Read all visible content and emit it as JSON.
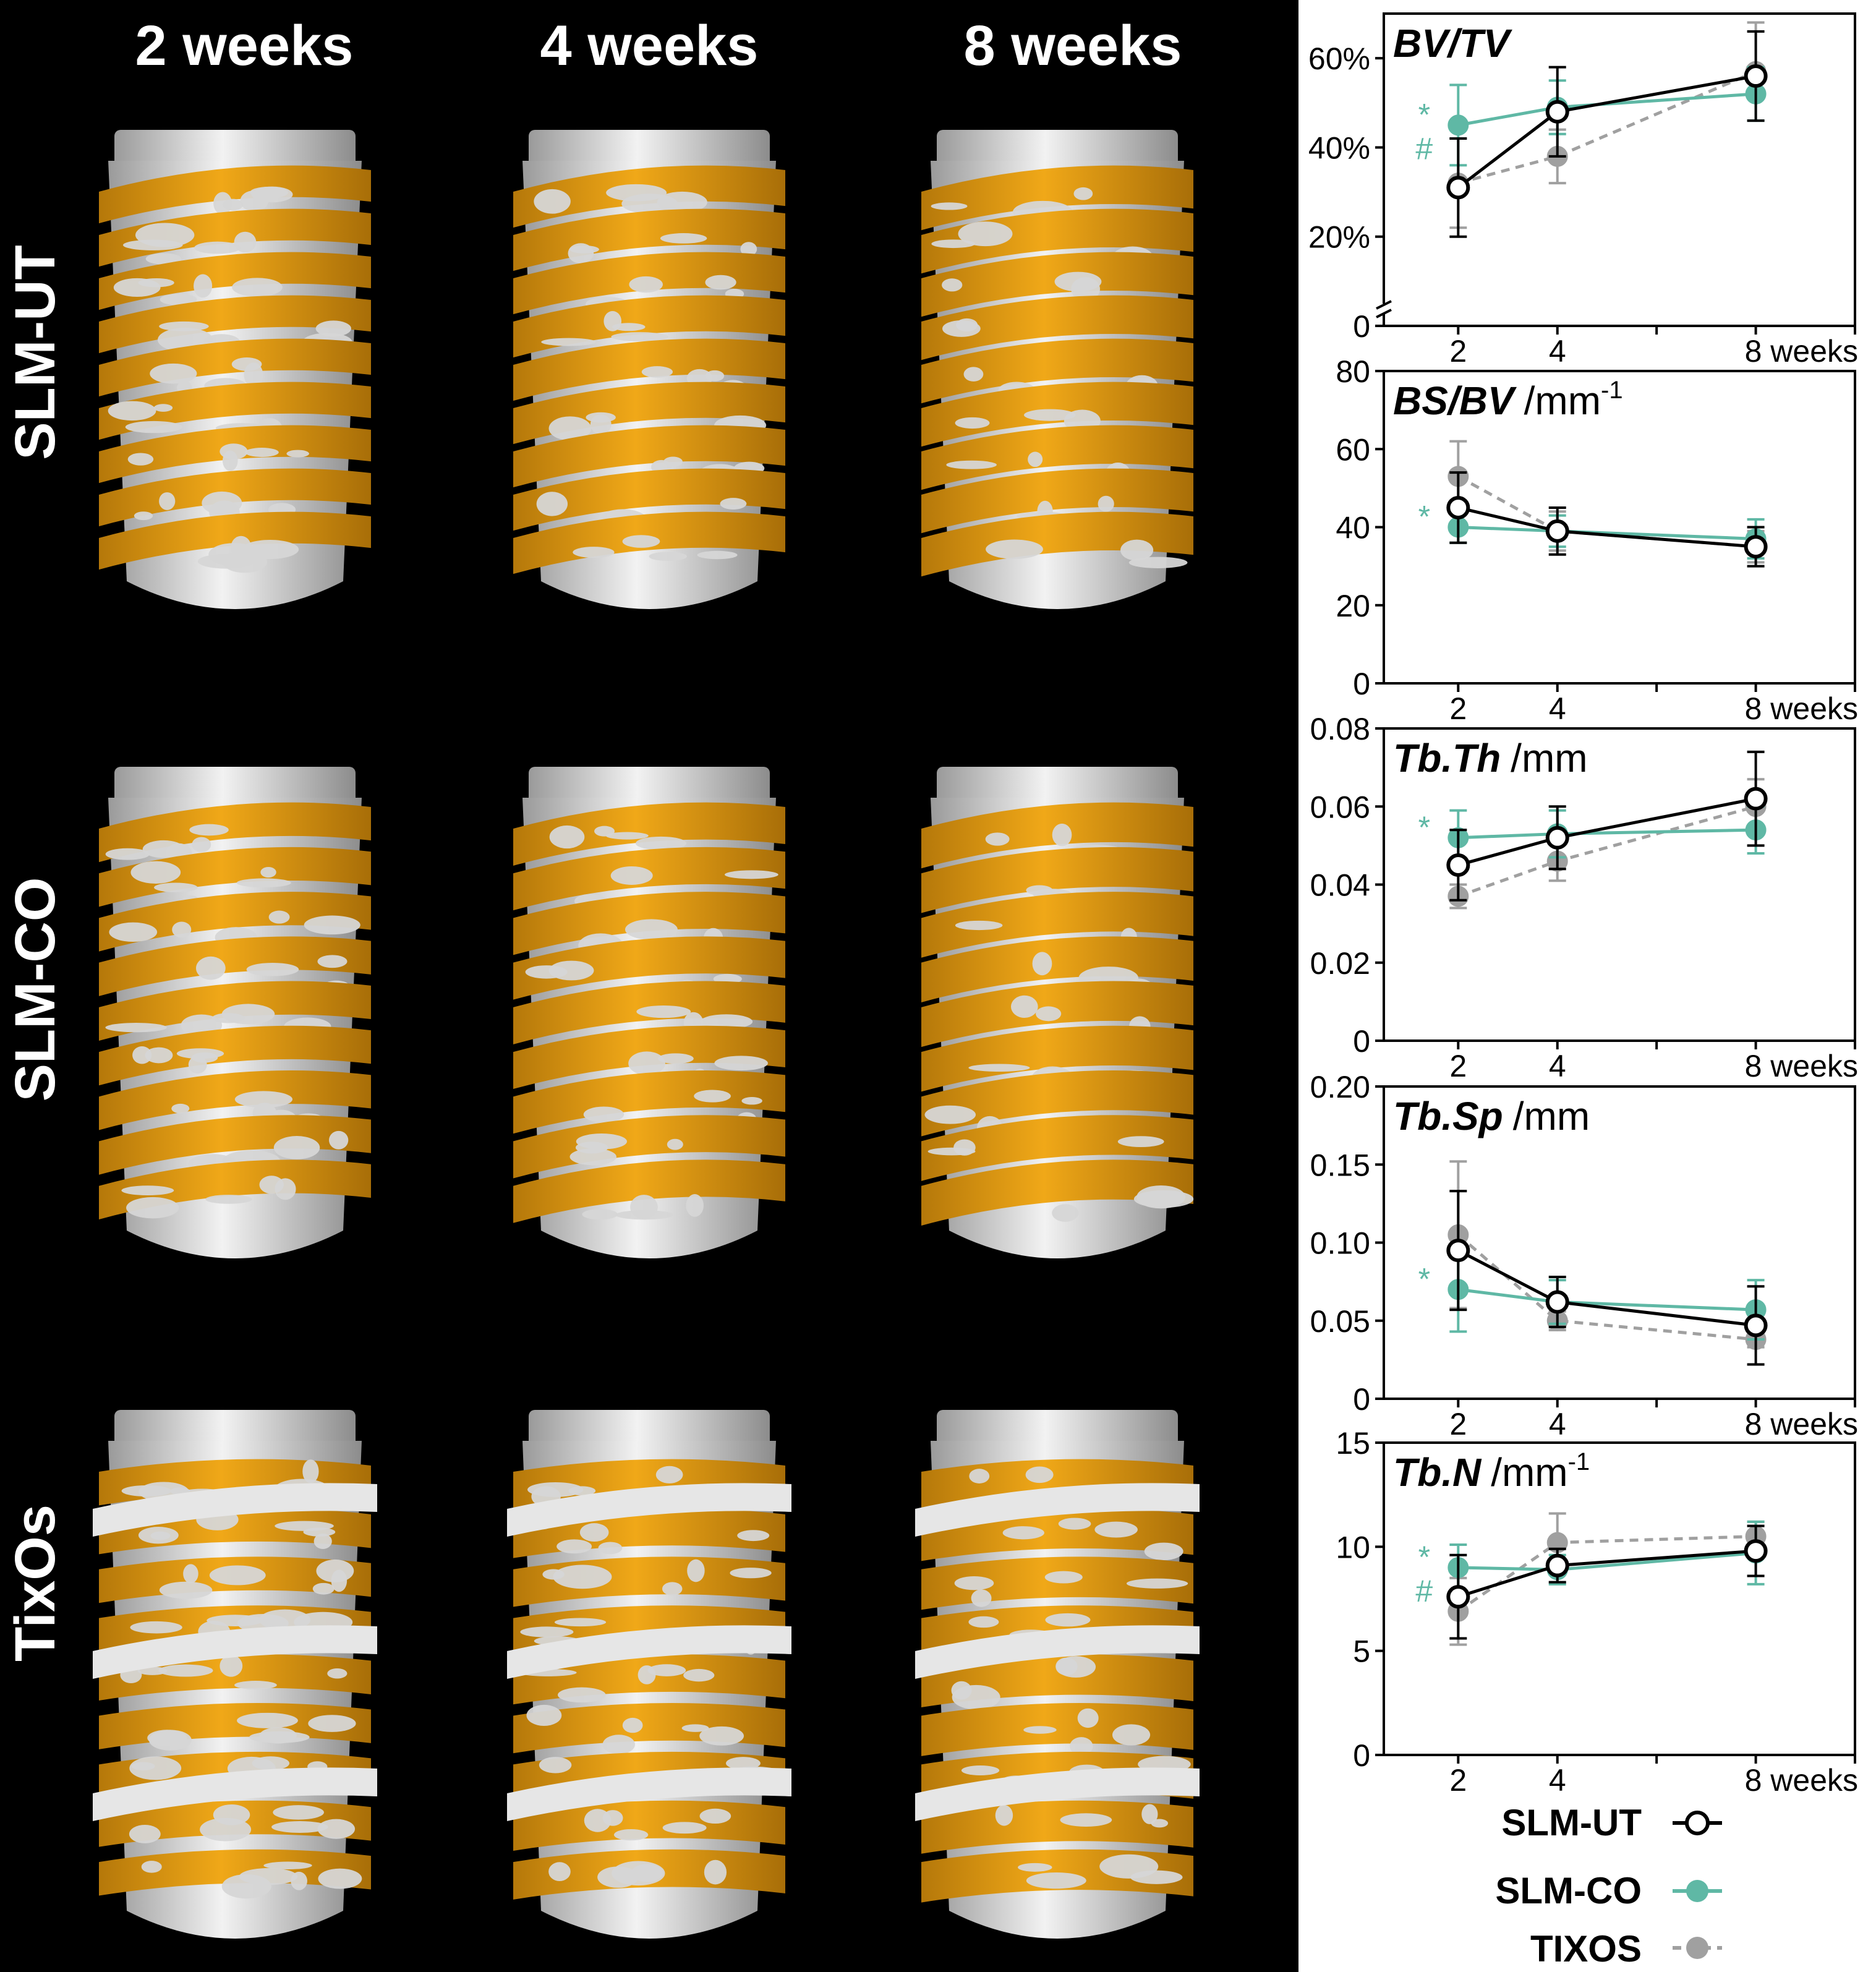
{
  "image_panel": {
    "column_headers": [
      "2 weeks",
      "4 weeks",
      "8 weeks"
    ],
    "row_labels": [
      "SLM-UT",
      "SLM-CO",
      "TixOs"
    ],
    "colors": {
      "background": "#000000",
      "implant": "#d9d9d9",
      "bone": "#e09a10",
      "bone_dark": "#b0760a",
      "header_text": "#ffffff"
    }
  },
  "series_style": {
    "SLM-UT": {
      "stroke": "#000000",
      "fill": "#ffffff",
      "dashed": false
    },
    "SLM-CO": {
      "stroke": "#5fb8a5",
      "fill": "#5fb8a5",
      "dashed": false
    },
    "TIXOS": {
      "stroke": "#a0a0a0",
      "fill": "#a0a0a0",
      "dashed": true
    }
  },
  "legend": {
    "items": [
      "SLM-UT",
      "SLM-CO",
      "TIXOS"
    ]
  },
  "chart_data": [
    {
      "type": "line",
      "title": "BV/TV",
      "title_unit": "",
      "x": [
        2,
        4,
        8
      ],
      "x_tick_labels": [
        "2",
        "4",
        "8 weeks"
      ],
      "ylim": [
        0,
        0.7
      ],
      "y_ticks": [
        0,
        0.2,
        0.4,
        0.6
      ],
      "y_tick_labels": [
        "0",
        "20%",
        "40%",
        "60%"
      ],
      "axis_break": true,
      "series": [
        {
          "name": "SLM-UT",
          "values": [
            0.31,
            0.48,
            0.56
          ],
          "error": [
            0.11,
            0.1,
            0.1
          ]
        },
        {
          "name": "SLM-CO",
          "values": [
            0.45,
            0.49,
            0.52
          ],
          "error": [
            0.09,
            0.06,
            0.06
          ]
        },
        {
          "name": "TIXOS",
          "values": [
            0.32,
            0.38,
            0.57
          ],
          "error": [
            0.1,
            0.06,
            0.11
          ]
        }
      ],
      "annotations": [
        "*",
        "#"
      ]
    },
    {
      "type": "line",
      "title": "BS/BV",
      "title_unit": "/mm",
      "title_superscript": "-1",
      "x": [
        2,
        4,
        8
      ],
      "x_tick_labels": [
        "2",
        "4",
        "8 weeks"
      ],
      "ylim": [
        0,
        80
      ],
      "y_ticks": [
        0,
        20,
        40,
        60,
        80
      ],
      "y_tick_labels": [
        "0",
        "20",
        "40",
        "60",
        "80"
      ],
      "series": [
        {
          "name": "SLM-UT",
          "values": [
            45,
            39,
            35
          ],
          "error": [
            9,
            6,
            5
          ]
        },
        {
          "name": "SLM-CO",
          "values": [
            40,
            39,
            37
          ],
          "error": [
            4,
            4,
            5
          ]
        },
        {
          "name": "TIXOS",
          "values": [
            53,
            39,
            35
          ],
          "error": [
            9,
            5,
            4
          ]
        }
      ],
      "annotations": [
        "*"
      ]
    },
    {
      "type": "line",
      "title": "Tb.Th",
      "title_unit": "/mm",
      "x": [
        2,
        4,
        8
      ],
      "x_tick_labels": [
        "2",
        "4",
        "8 weeks"
      ],
      "ylim": [
        0,
        0.08
      ],
      "y_ticks": [
        0,
        0.02,
        0.04,
        0.06,
        0.08
      ],
      "y_tick_labels": [
        "0",
        "0.02",
        "0.04",
        "0.06",
        "0.08"
      ],
      "series": [
        {
          "name": "SLM-UT",
          "values": [
            0.045,
            0.052,
            0.062
          ],
          "error": [
            0.009,
            0.008,
            0.012
          ]
        },
        {
          "name": "SLM-CO",
          "values": [
            0.052,
            0.053,
            0.054
          ],
          "error": [
            0.007,
            0.006,
            0.006
          ]
        },
        {
          "name": "TIXOS",
          "values": [
            0.037,
            0.046,
            0.06
          ],
          "error": [
            0.003,
            0.005,
            0.007
          ]
        }
      ],
      "annotations": [
        "*"
      ]
    },
    {
      "type": "line",
      "title": "Tb.Sp",
      "title_unit": "/mm",
      "x": [
        2,
        4,
        8
      ],
      "x_tick_labels": [
        "2",
        "4",
        "8 weeks"
      ],
      "ylim": [
        0,
        0.2
      ],
      "y_ticks": [
        0,
        0.05,
        0.1,
        0.15,
        0.2
      ],
      "y_tick_labels": [
        "0",
        "0.05",
        "0.10",
        "0.15",
        "0.20"
      ],
      "series": [
        {
          "name": "SLM-UT",
          "values": [
            0.095,
            0.062,
            0.047
          ],
          "error": [
            0.038,
            0.016,
            0.025
          ]
        },
        {
          "name": "SLM-CO",
          "values": [
            0.07,
            0.062,
            0.057
          ],
          "error": [
            0.027,
            0.014,
            0.019
          ]
        },
        {
          "name": "TIXOS",
          "values": [
            0.105,
            0.05,
            0.038
          ],
          "error": [
            0.047,
            0.006,
            0.005
          ]
        }
      ],
      "annotations": [
        "*"
      ]
    },
    {
      "type": "line",
      "title": "Tb.N",
      "title_unit": "/mm",
      "title_superscript": "-1",
      "x": [
        2,
        4,
        8
      ],
      "x_tick_labels": [
        "2",
        "4",
        "8 weeks"
      ],
      "ylim": [
        0,
        15
      ],
      "y_ticks": [
        0,
        5,
        10,
        15
      ],
      "y_tick_labels": [
        "0",
        "5",
        "10",
        "15"
      ],
      "series": [
        {
          "name": "SLM-UT",
          "values": [
            7.6,
            9.1,
            9.8
          ],
          "error": [
            2.0,
            0.8,
            1.2
          ]
        },
        {
          "name": "SLM-CO",
          "values": [
            9.0,
            8.9,
            9.7
          ],
          "error": [
            1.1,
            0.7,
            1.5
          ]
        },
        {
          "name": "TIXOS",
          "values": [
            6.9,
            10.2,
            10.5
          ],
          "error": [
            1.6,
            1.4,
            0.7
          ]
        }
      ],
      "annotations": [
        "*",
        "#"
      ]
    }
  ]
}
